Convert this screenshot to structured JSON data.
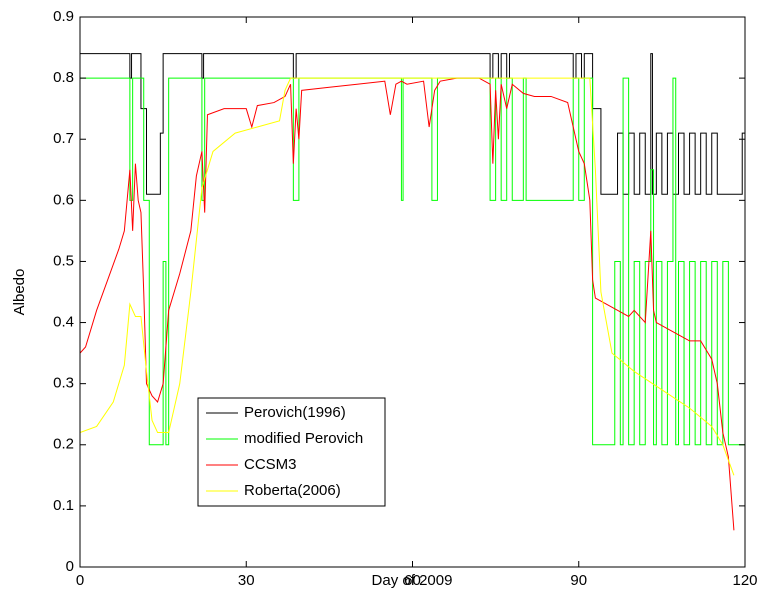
{
  "chart_data": {
    "type": "line",
    "xlabel": "Day of 2009",
    "ylabel": "Albedo",
    "xlim": [
      0,
      120
    ],
    "xticks": [
      0,
      30,
      60,
      90,
      120
    ],
    "ylim": [
      0,
      0.9
    ],
    "yticks": [
      0,
      0.1,
      0.2,
      0.3,
      0.4,
      0.5,
      0.6,
      0.7,
      0.8,
      0.9
    ],
    "grid": false,
    "legend": "lower left",
    "series": [
      {
        "name": "Perovich(1996)",
        "color": "#000000",
        "x": [
          0,
          9,
          9,
          9.3,
          9.3,
          11,
          11,
          12,
          12,
          14.5,
          14.5,
          15,
          15,
          22,
          22,
          22.3,
          22.3,
          38.5,
          38.5,
          39,
          39,
          74,
          74,
          74.5,
          74.5,
          75.5,
          75.5,
          76,
          76,
          77,
          77,
          77.5,
          77.5,
          89,
          89,
          89.5,
          89.5,
          90.5,
          90.5,
          91,
          91,
          92.5,
          92.5,
          94,
          94,
          97,
          97,
          98,
          98,
          99,
          99,
          100,
          100,
          101,
          101,
          102,
          102,
          103,
          103,
          103.3,
          103.3,
          104,
          104,
          105,
          105,
          106,
          106,
          107,
          107,
          108,
          108,
          109,
          109,
          110,
          110,
          111,
          111,
          112,
          112,
          113,
          113,
          114,
          114,
          115,
          115,
          116,
          116,
          119.5,
          119.5,
          120
        ],
        "values": [
          0.84,
          0.84,
          0.8,
          0.8,
          0.84,
          0.84,
          0.75,
          0.75,
          0.61,
          0.61,
          0.71,
          0.71,
          0.84,
          0.84,
          0.8,
          0.8,
          0.84,
          0.84,
          0.8,
          0.8,
          0.84,
          0.84,
          0.8,
          0.8,
          0.84,
          0.84,
          0.8,
          0.8,
          0.84,
          0.84,
          0.8,
          0.8,
          0.84,
          0.84,
          0.8,
          0.8,
          0.84,
          0.84,
          0.8,
          0.8,
          0.84,
          0.84,
          0.75,
          0.75,
          0.61,
          0.61,
          0.71,
          0.71,
          0.61,
          0.61,
          0.71,
          0.71,
          0.61,
          0.61,
          0.71,
          0.71,
          0.61,
          0.61,
          0.84,
          0.84,
          0.61,
          0.61,
          0.71,
          0.71,
          0.61,
          0.61,
          0.71,
          0.71,
          0.61,
          0.61,
          0.71,
          0.71,
          0.61,
          0.61,
          0.71,
          0.71,
          0.61,
          0.61,
          0.71,
          0.71,
          0.61,
          0.61,
          0.71,
          0.71,
          0.61,
          0.61,
          0.61,
          0.61,
          0.71,
          0.71
        ]
      },
      {
        "name": "modified Perovich",
        "color": "#00ff00",
        "x": [
          0,
          9,
          9,
          9.5,
          9.5,
          11.5,
          11.5,
          12.5,
          12.5,
          15,
          15,
          15.5,
          15.5,
          16,
          16,
          22,
          22,
          22.5,
          22.5,
          38.5,
          38.5,
          39.5,
          39.5,
          58,
          58,
          58.3,
          58.3,
          63.5,
          63.5,
          64.5,
          64.5,
          74,
          74,
          75,
          75,
          76,
          76,
          77,
          77,
          78,
          78,
          80,
          80,
          80.5,
          80.5,
          89,
          89,
          90,
          90,
          91,
          91,
          92.5,
          92.5,
          96.5,
          96.5,
          97.5,
          97.5,
          98,
          98,
          99,
          99,
          100,
          100,
          101,
          101,
          102,
          102,
          103,
          103,
          103.5,
          103.5,
          104,
          104,
          105,
          105,
          106,
          106,
          107,
          107,
          107.5,
          107.5,
          108,
          108,
          109,
          109,
          110,
          110,
          111,
          111,
          112,
          112,
          113,
          113,
          114,
          114,
          115,
          115,
          116,
          116,
          117,
          117,
          120
        ],
        "values": [
          0.8,
          0.8,
          0.6,
          0.6,
          0.8,
          0.8,
          0.6,
          0.6,
          0.2,
          0.2,
          0.5,
          0.5,
          0.2,
          0.2,
          0.8,
          0.8,
          0.6,
          0.6,
          0.8,
          0.8,
          0.6,
          0.6,
          0.8,
          0.8,
          0.6,
          0.6,
          0.8,
          0.8,
          0.6,
          0.6,
          0.8,
          0.8,
          0.6,
          0.6,
          0.8,
          0.8,
          0.6,
          0.6,
          0.8,
          0.8,
          0.6,
          0.6,
          0.8,
          0.8,
          0.6,
          0.6,
          0.8,
          0.8,
          0.6,
          0.6,
          0.8,
          0.8,
          0.2,
          0.2,
          0.5,
          0.5,
          0.2,
          0.2,
          0.8,
          0.8,
          0.2,
          0.2,
          0.5,
          0.5,
          0.2,
          0.2,
          0.5,
          0.5,
          0.65,
          0.65,
          0.2,
          0.2,
          0.5,
          0.5,
          0.2,
          0.2,
          0.5,
          0.5,
          0.8,
          0.8,
          0.2,
          0.2,
          0.5,
          0.5,
          0.2,
          0.2,
          0.5,
          0.5,
          0.2,
          0.2,
          0.5,
          0.5,
          0.2,
          0.2,
          0.5,
          0.5,
          0.2,
          0.2,
          0.5,
          0.5,
          0.2,
          0.2
        ]
      },
      {
        "name": "CCSM3",
        "color": "#ff0000",
        "x": [
          0,
          1,
          3,
          5,
          7,
          8,
          9,
          9.5,
          10,
          10.5,
          11,
          11.5,
          12,
          13,
          14,
          15,
          16,
          18,
          20,
          21,
          22,
          22.5,
          23,
          26,
          30,
          31,
          32,
          35,
          37,
          38,
          38.5,
          39,
          39.5,
          40,
          45,
          50,
          55,
          56,
          57,
          58,
          59,
          62,
          63,
          64,
          65,
          68,
          70,
          72,
          74,
          74.5,
          75,
          75.5,
          76,
          77,
          78,
          80,
          82,
          85,
          88,
          89,
          90,
          91,
          92,
          92.5,
          93,
          95,
          97,
          99,
          100,
          102,
          103,
          103.5,
          104,
          106,
          108,
          110,
          112,
          114,
          115,
          116,
          117,
          118
        ],
        "values": [
          0.35,
          0.36,
          0.42,
          0.47,
          0.52,
          0.55,
          0.65,
          0.55,
          0.66,
          0.6,
          0.58,
          0.45,
          0.3,
          0.28,
          0.27,
          0.3,
          0.42,
          0.48,
          0.55,
          0.64,
          0.68,
          0.58,
          0.74,
          0.75,
          0.75,
          0.72,
          0.755,
          0.76,
          0.77,
          0.79,
          0.66,
          0.75,
          0.7,
          0.78,
          0.785,
          0.79,
          0.795,
          0.74,
          0.79,
          0.795,
          0.79,
          0.795,
          0.72,
          0.78,
          0.795,
          0.8,
          0.8,
          0.8,
          0.79,
          0.66,
          0.78,
          0.7,
          0.79,
          0.75,
          0.79,
          0.775,
          0.77,
          0.77,
          0.76,
          0.72,
          0.68,
          0.66,
          0.6,
          0.47,
          0.44,
          0.43,
          0.42,
          0.41,
          0.42,
          0.4,
          0.55,
          0.42,
          0.4,
          0.39,
          0.38,
          0.37,
          0.37,
          0.34,
          0.3,
          0.22,
          0.18,
          0.06
        ]
      },
      {
        "name": "Roberta(2006)",
        "color": "#ffff00",
        "x": [
          0,
          3,
          6,
          8,
          9,
          10,
          11,
          12,
          13,
          14,
          16,
          18,
          20,
          22,
          24,
          28,
          32,
          36,
          37,
          38,
          60,
          92,
          93,
          94,
          96,
          100,
          105,
          110,
          114,
          116,
          118
        ],
        "values": [
          0.22,
          0.23,
          0.27,
          0.33,
          0.43,
          0.41,
          0.41,
          0.32,
          0.24,
          0.22,
          0.22,
          0.3,
          0.45,
          0.62,
          0.68,
          0.71,
          0.72,
          0.73,
          0.78,
          0.8,
          0.8,
          0.8,
          0.65,
          0.45,
          0.35,
          0.32,
          0.29,
          0.26,
          0.23,
          0.2,
          0.15
        ]
      }
    ]
  }
}
